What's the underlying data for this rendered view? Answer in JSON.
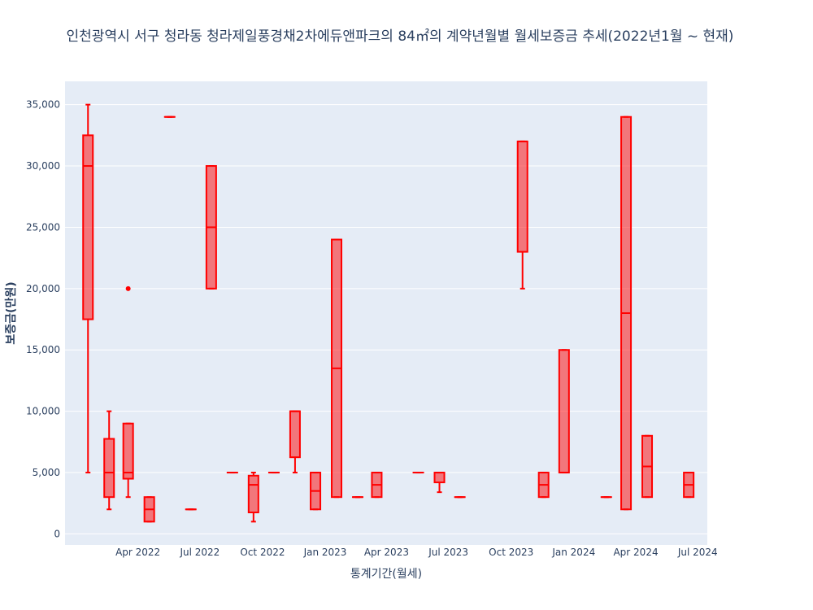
{
  "chart_data": {
    "type": "box",
    "title": "인천광역시 서구 청라동 청라제일풍경채2차에듀앤파크의 84㎡의 계약년월별 월세보증금 추세(2022년1월 ~ 현재)",
    "xlabel": "통계기간(월세)",
    "ylabel": "보증금(만원)",
    "ylim": [
      -900,
      36900
    ],
    "xlim": [
      "2021-12-15",
      "2024-07-15"
    ],
    "y_ticks": [
      0,
      5000,
      10000,
      15000,
      20000,
      25000,
      30000,
      35000
    ],
    "y_tick_labels": [
      "0",
      "5,000",
      "10,000",
      "15,000",
      "20,000",
      "25,000",
      "30,000",
      "35,000"
    ],
    "x_ticks": [
      "2022-04",
      "2022-07",
      "2022-10",
      "2023-01",
      "2023-04",
      "2023-07",
      "2023-10",
      "2024-01",
      "2024-04",
      "2024-07"
    ],
    "x_tick_labels": [
      "Apr 2022",
      "Jul 2022",
      "Oct 2022",
      "Jan 2023",
      "Apr 2023",
      "Jul 2023",
      "Oct 2023",
      "Jan 2024",
      "Apr 2024",
      "Jul 2024"
    ],
    "grid": true,
    "colors": {
      "line": "#ff0000",
      "fill": "rgba(255,0,0,0.5)",
      "plot_bg": "#e5ecf6",
      "grid": "#ffffff",
      "text": "#2a3f5f"
    },
    "boxes": [
      {
        "month": "2022-01",
        "min": 5000,
        "q1": 17500,
        "median": 30000,
        "q3": 32500,
        "max": 35000,
        "outliers": []
      },
      {
        "month": "2022-02",
        "min": 2000,
        "q1": 3000,
        "median": 5000,
        "q3": 7750,
        "max": 10000,
        "outliers": []
      },
      {
        "month": "2022-03",
        "min": 3000,
        "q1": 4500,
        "median": 5000,
        "q3": 9000,
        "max": 9000,
        "outliers": [
          20000
        ]
      },
      {
        "month": "2022-04",
        "min": 1000,
        "q1": 1000,
        "median": 2000,
        "q3": 3000,
        "max": 3000,
        "outliers": []
      },
      {
        "month": "2022-05",
        "min": 34000,
        "q1": 34000,
        "median": 34000,
        "q3": 34000,
        "max": 34000,
        "outliers": []
      },
      {
        "month": "2022-06",
        "min": 2000,
        "q1": 2000,
        "median": 2000,
        "q3": 2000,
        "max": 2000,
        "outliers": []
      },
      {
        "month": "2022-07",
        "min": 20000,
        "q1": 20000,
        "median": 25000,
        "q3": 30000,
        "max": 30000,
        "outliers": []
      },
      {
        "month": "2022-08",
        "min": 5000,
        "q1": 5000,
        "median": 5000,
        "q3": 5000,
        "max": 5000,
        "outliers": []
      },
      {
        "month": "2022-09",
        "min": 1000,
        "q1": 1750,
        "median": 4000,
        "q3": 4750,
        "max": 5000,
        "outliers": []
      },
      {
        "month": "2022-10",
        "min": 5000,
        "q1": 5000,
        "median": 5000,
        "q3": 5000,
        "max": 5000,
        "outliers": []
      },
      {
        "month": "2022-11",
        "min": 5000,
        "q1": 6250,
        "median": 10000,
        "q3": 10000,
        "max": 10000,
        "outliers": []
      },
      {
        "month": "2022-12",
        "min": 2000,
        "q1": 2000,
        "median": 3500,
        "q3": 5000,
        "max": 5000,
        "outliers": []
      },
      {
        "month": "2023-01",
        "min": 3000,
        "q1": 3000,
        "median": 13500,
        "q3": 24000,
        "max": 24000,
        "outliers": []
      },
      {
        "month": "2023-02",
        "min": 3000,
        "q1": 3000,
        "median": 3000,
        "q3": 3000,
        "max": 3000,
        "outliers": []
      },
      {
        "month": "2023-03",
        "min": 3000,
        "q1": 3000,
        "median": 4000,
        "q3": 5000,
        "max": 5000,
        "outliers": []
      },
      {
        "month": "2023-05",
        "min": 5000,
        "q1": 5000,
        "median": 5000,
        "q3": 5000,
        "max": 5000,
        "outliers": []
      },
      {
        "month": "2023-06",
        "min": 3400,
        "q1": 4200,
        "median": 5000,
        "q3": 5000,
        "max": 5000,
        "outliers": []
      },
      {
        "month": "2023-07",
        "min": 3000,
        "q1": 3000,
        "median": 3000,
        "q3": 3000,
        "max": 3000,
        "outliers": []
      },
      {
        "month": "2023-10",
        "min": 20000,
        "q1": 23000,
        "median": 32000,
        "q3": 32000,
        "max": 32000,
        "outliers": []
      },
      {
        "month": "2023-11",
        "min": 3000,
        "q1": 3000,
        "median": 4000,
        "q3": 5000,
        "max": 5000,
        "outliers": []
      },
      {
        "month": "2023-12",
        "min": 5000,
        "q1": 5000,
        "median": 5000,
        "q3": 15000,
        "max": 15000,
        "outliers": []
      },
      {
        "month": "2024-02",
        "min": 3000,
        "q1": 3000,
        "median": 3000,
        "q3": 3000,
        "max": 3000,
        "outliers": []
      },
      {
        "month": "2024-03",
        "min": 2000,
        "q1": 2000,
        "median": 18000,
        "q3": 34000,
        "max": 34000,
        "outliers": []
      },
      {
        "month": "2024-04",
        "min": 3000,
        "q1": 3000,
        "median": 5500,
        "q3": 8000,
        "max": 8000,
        "outliers": []
      },
      {
        "month": "2024-06",
        "min": 3000,
        "q1": 3000,
        "median": 4000,
        "q3": 5000,
        "max": 5000,
        "outliers": []
      }
    ]
  }
}
